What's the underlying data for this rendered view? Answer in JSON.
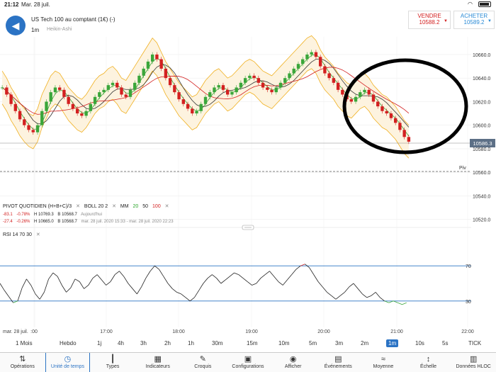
{
  "status": {
    "time": "21:12",
    "date": "Mar. 28 juil.",
    "wifi_icon": "wifi-icon",
    "battery_icon": "battery-icon"
  },
  "header": {
    "instrument": "US Tech 100 au comptant (1€) (-)",
    "timeframe": "1m",
    "chart_type": "Heikin-Ashi",
    "sell_label": "VENDRE",
    "sell_price": "10588.2",
    "buy_label": "ACHETER",
    "buy_price": "10589.2"
  },
  "price_axis": {
    "current": "10586.3",
    "piv_label": "Piv"
  },
  "indicators": {
    "pivot": "PIVOT QUOTIDIEN (H+B+C)/3",
    "boll": "BOLL 20 2",
    "mm_label": "MM",
    "mm_20": "20",
    "mm_50": "50",
    "mm_100": "100",
    "row1": {
      "chg": "-83.1",
      "pct": "-0.78%",
      "h": "H 10769.3",
      "b": "B 10568.7",
      "period": "Aujourd'hui"
    },
    "row2": {
      "chg": "-27.4",
      "pct": "-0.26%",
      "h": "H 10665.0",
      "b": "B 10568.7",
      "period": "mar. 28 juil. 2020 15:33 - mar. 28 juil. 2020 22:23"
    },
    "rsi": "RSI 14 70 30"
  },
  "chart_data": {
    "type": "line",
    "title": "",
    "x_ticks": [
      "mar. 28 juil.",
      ":00",
      "17:00",
      "18:00",
      "19:00",
      "20:00",
      "21:00",
      "22:00"
    ],
    "y_ticks": [
      10660,
      10640,
      10620,
      10600,
      10580,
      10560,
      10540,
      10520
    ],
    "ylim": [
      10515,
      10675
    ],
    "current_price": 10586.3,
    "pivot": 10562,
    "series": [
      {
        "values": [
          10632,
          10626,
          10618,
          10612,
          10605,
          10600,
          10596,
          10594,
          10600,
          10612,
          10620,
          10628,
          10632,
          10630,
          10624,
          10618,
          10614,
          10610,
          10608,
          10612,
          10618,
          10624,
          10628,
          10630,
          10634,
          10636,
          10632,
          10626,
          10624,
          10630,
          10636,
          10642,
          10648,
          10654,
          10660,
          10656,
          10648,
          10640,
          10634,
          10628,
          10622,
          10618,
          10614,
          10610,
          10612,
          10618,
          10624,
          10628,
          10632,
          10634,
          10630,
          10626,
          10628,
          10632,
          10636,
          10640,
          10642,
          10640,
          10636,
          10632,
          10630,
          10628,
          10632,
          10636,
          10640,
          10644,
          10648,
          10652,
          10656,
          10660,
          10662,
          10658,
          10650,
          10644,
          10640,
          10636,
          10630,
          10626,
          10622,
          10620,
          10624,
          10628,
          10630,
          10626,
          10620,
          10616,
          10612,
          10610,
          10606,
          10602,
          10596,
          10590,
          10586
        ]
      }
    ],
    "rsi": {
      "levels": [
        70,
        30
      ],
      "values": [
        50,
        42,
        35,
        28,
        30,
        45,
        55,
        48,
        38,
        32,
        40,
        55,
        62,
        58,
        48,
        40,
        45,
        55,
        52,
        44,
        48,
        56,
        60,
        54,
        48,
        52,
        60,
        64,
        58,
        50,
        44,
        38,
        46,
        56,
        64,
        70,
        66,
        58,
        50,
        44,
        40,
        38,
        34,
        30,
        34,
        42,
        50,
        56,
        60,
        56,
        50,
        54,
        58,
        62,
        60,
        56,
        52,
        48,
        50,
        56,
        60,
        64,
        58,
        52,
        48,
        54,
        60,
        66,
        70,
        72,
        68,
        60,
        52,
        46,
        40,
        36,
        32,
        36,
        40,
        46,
        50,
        44,
        38,
        34,
        36,
        40,
        34,
        30,
        28,
        30,
        28,
        26,
        28
      ]
    }
  },
  "timeframes": [
    "1 Mois",
    "Hebdo",
    "1j",
    "4h",
    "3h",
    "2h",
    "1h",
    "30m",
    "15m",
    "10m",
    "5m",
    "3m",
    "2m",
    "1m",
    "10s",
    "5s",
    "TICK"
  ],
  "active_timeframe": "1m",
  "toolbar": [
    {
      "label": "Opérations",
      "icon": "swap-arrows-icon"
    },
    {
      "label": "Unité de temps",
      "icon": "clock-icon"
    },
    {
      "label": "Types",
      "icon": "candles-icon"
    },
    {
      "label": "Indicateurs",
      "icon": "indicators-icon"
    },
    {
      "label": "Croquis",
      "icon": "pen-icon"
    },
    {
      "label": "Configurations",
      "icon": "layout-icon"
    },
    {
      "label": "Afficher",
      "icon": "eye-icon"
    },
    {
      "label": "Événements",
      "icon": "calendar-icon"
    },
    {
      "label": "Moyenne",
      "icon": "average-icon"
    },
    {
      "label": "Échelle",
      "icon": "scale-icon"
    },
    {
      "label": "Données HLOC",
      "icon": "hloc-icon"
    }
  ]
}
